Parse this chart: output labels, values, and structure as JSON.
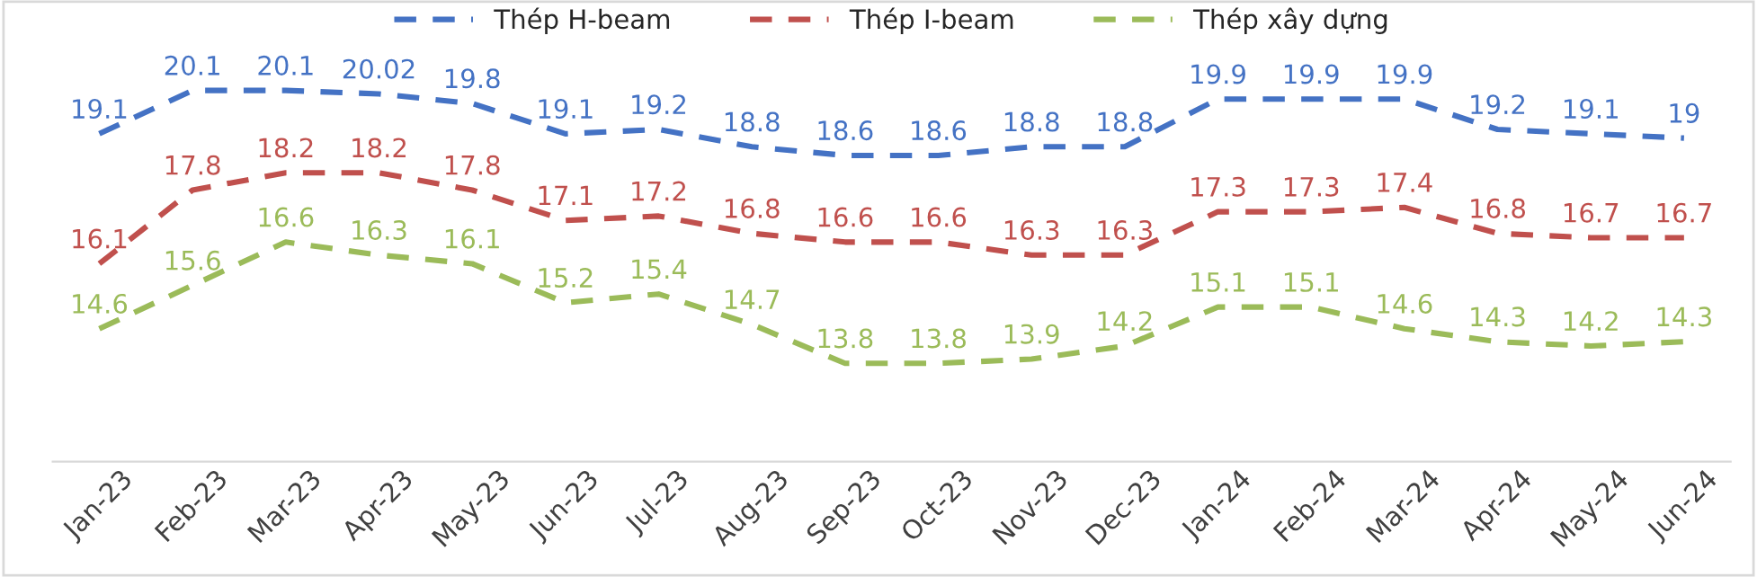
{
  "chart_data": {
    "type": "line",
    "categories": [
      "Jan-23",
      "Feb-23",
      "Mar-23",
      "Apr-23",
      "May-23",
      "Jun-23",
      "Jul-23",
      "Aug-23",
      "Sep-23",
      "Oct-23",
      "Nov-23",
      "Dec-23",
      "Jan-24",
      "Feb-24",
      "Mar-24",
      "Apr-24",
      "May-24",
      "Jun-24"
    ],
    "series": [
      {
        "name": "Thép H-beam",
        "color": "#4472c4",
        "values": [
          19.1,
          20.1,
          20.1,
          20.02,
          19.8,
          19.1,
          19.2,
          18.8,
          18.6,
          18.6,
          18.8,
          18.8,
          19.9,
          19.9,
          19.9,
          19.2,
          19.1,
          19
        ]
      },
      {
        "name": "Thép I-beam",
        "color": "#c0504d",
        "values": [
          16.1,
          17.8,
          18.2,
          18.2,
          17.8,
          17.1,
          17.2,
          16.8,
          16.6,
          16.6,
          16.3,
          16.3,
          17.3,
          17.3,
          17.4,
          16.8,
          16.7,
          16.7
        ]
      },
      {
        "name": "Thép xây dựng",
        "color": "#9bbb59",
        "values": [
          14.6,
          15.6,
          16.6,
          16.3,
          16.1,
          15.2,
          15.4,
          14.7,
          13.8,
          13.8,
          13.9,
          14.2,
          15.1,
          15.1,
          14.6,
          14.3,
          14.2,
          14.3
        ]
      }
    ],
    "data_labels": true,
    "legend": "top",
    "line_style": "dashed",
    "marker": "none",
    "grid": false
  }
}
